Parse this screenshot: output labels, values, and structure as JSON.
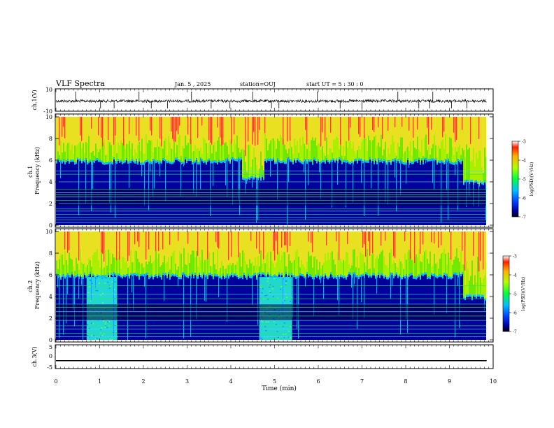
{
  "header": {
    "title": "VLF Spectra",
    "date": "Jan. 5 , 2025",
    "station": "station=OUJ",
    "start": "start UT =  5 : 30 : 0"
  },
  "chart_data": [
    {
      "type": "line",
      "panel": "ch1-waveform",
      "ylabel": "ch.1(V)",
      "ylim": [
        -10,
        10
      ],
      "ytick_labels": [
        "10",
        "-10"
      ],
      "xlim": [
        0,
        9.85
      ],
      "baseline_level_V": -1.0,
      "spikes_min": [
        0.45,
        1.02,
        1.33,
        1.9,
        2.18,
        2.55,
        3.1,
        3.55,
        3.98,
        4.5,
        4.93,
        5.1,
        5.98,
        6.5,
        7.0,
        7.82,
        8.3,
        8.55,
        8.62,
        9.05,
        9.4
      ]
    },
    {
      "type": "heatmap",
      "panel": "ch1-spectrogram",
      "ylabel": "ch.1\nFrequency (kHz)",
      "ylim": [
        0,
        10
      ],
      "yticks": [
        "0",
        "2",
        "4",
        "6",
        "8",
        "10"
      ],
      "xlim": [
        0,
        9.85
      ],
      "colorbar": {
        "label": "log(PSD)(V²/Hz)",
        "range": [
          -7,
          -3
        ],
        "ticks": [
          "-3",
          "-4",
          "-5",
          "-6",
          "-7"
        ]
      },
      "noise_floor_kHz": 6.0,
      "noise_bulges": [
        {
          "x": [
            4.25,
            4.75
          ],
          "floor_kHz": 4.5
        },
        {
          "x": [
            9.3,
            9.85
          ],
          "floor_kHz": 4.0
        }
      ],
      "horizontal_lines_kHz": [
        0.25,
        0.5,
        0.7,
        1.0,
        1.3,
        1.5,
        2.0,
        2.3,
        2.6,
        2.8,
        3.0,
        3.3,
        4.0,
        4.7,
        5.0
      ]
    },
    {
      "type": "heatmap",
      "panel": "ch2-spectrogram",
      "ylabel": "ch.2\nFrequency (kHz)",
      "ylim": [
        0,
        10
      ],
      "yticks": [
        "0",
        "2",
        "4",
        "6",
        "8",
        "10"
      ],
      "xlim": [
        0,
        9.85
      ],
      "colorbar": {
        "label": "log(PSD)(V²/Hz)",
        "range": [
          -7,
          -3
        ],
        "ticks": [
          "-3",
          "-4",
          "-5",
          "-6",
          "-7"
        ]
      },
      "noise_floor_kHz": 6.0,
      "broadband_noise_blocks": [
        {
          "x": [
            0.7,
            1.4
          ],
          "top_kHz": 5.8
        },
        {
          "x": [
            4.65,
            5.4
          ],
          "top_kHz": 5.8
        }
      ],
      "noise_bulges": [
        {
          "x": [
            9.3,
            9.85
          ],
          "floor_kHz": 4.0
        }
      ],
      "horizontal_lines_kHz": [
        0.3,
        0.6,
        1.0,
        1.3,
        1.8,
        2.2,
        2.6,
        3.0,
        3.3,
        3.8,
        4.2,
        5.0
      ]
    },
    {
      "type": "line",
      "panel": "ch3-waveform",
      "ylabel": "ch.3(V)",
      "ylim": [
        -5,
        5
      ],
      "ytick_labels": [
        "5",
        "0",
        "-5"
      ],
      "xlim": [
        0,
        9.85
      ],
      "level_V": -1.8
    }
  ],
  "xaxis": {
    "label": "Time (min)",
    "range": [
      0,
      10
    ],
    "ticks": [
      "0",
      "1",
      "2",
      "3",
      "4",
      "5",
      "6",
      "7",
      "8",
      "9",
      "10"
    ]
  }
}
